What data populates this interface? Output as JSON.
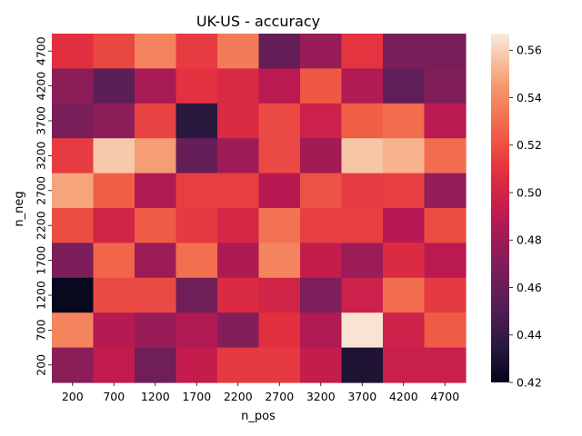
{
  "chart_data": {
    "type": "heatmap",
    "title": "UK-US - accuracy",
    "xlabel": "n_pos",
    "ylabel": "n_neg",
    "x": [
      "200",
      "700",
      "1200",
      "1700",
      "2200",
      "2700",
      "3200",
      "3700",
      "4200",
      "4700"
    ],
    "y": [
      "4700",
      "4200",
      "3700",
      "3200",
      "2700",
      "2200",
      "1700",
      "1200",
      "700",
      "200"
    ],
    "values": [
      [
        0.508,
        0.517,
        0.538,
        0.513,
        0.535,
        0.458,
        0.478,
        0.51,
        0.467,
        0.467
      ],
      [
        0.474,
        0.455,
        0.484,
        0.509,
        0.504,
        0.49,
        0.523,
        0.487,
        0.457,
        0.47
      ],
      [
        0.467,
        0.474,
        0.515,
        0.436,
        0.505,
        0.518,
        0.497,
        0.525,
        0.53,
        0.49
      ],
      [
        0.513,
        0.558,
        0.546,
        0.459,
        0.481,
        0.518,
        0.482,
        0.557,
        0.552,
        0.53
      ],
      [
        0.548,
        0.525,
        0.487,
        0.514,
        0.514,
        0.489,
        0.521,
        0.513,
        0.514,
        0.476
      ],
      [
        0.519,
        0.5,
        0.524,
        0.512,
        0.502,
        0.532,
        0.514,
        0.514,
        0.489,
        0.519
      ],
      [
        0.468,
        0.528,
        0.48,
        0.531,
        0.486,
        0.538,
        0.494,
        0.479,
        0.505,
        0.49
      ],
      [
        0.422,
        0.518,
        0.518,
        0.463,
        0.505,
        0.5,
        0.469,
        0.497,
        0.53,
        0.512
      ],
      [
        0.538,
        0.488,
        0.478,
        0.487,
        0.471,
        0.508,
        0.487,
        0.565,
        0.498,
        0.524
      ],
      [
        0.473,
        0.493,
        0.463,
        0.494,
        0.512,
        0.512,
        0.494,
        0.431,
        0.496,
        0.496
      ]
    ],
    "colorbar": {
      "range": [
        0.42,
        0.567
      ],
      "ticks": [
        "0.42",
        "0.44",
        "0.46",
        "0.48",
        "0.50",
        "0.52",
        "0.54",
        "0.56"
      ]
    },
    "colormap": "rocket",
    "grid": false
  }
}
